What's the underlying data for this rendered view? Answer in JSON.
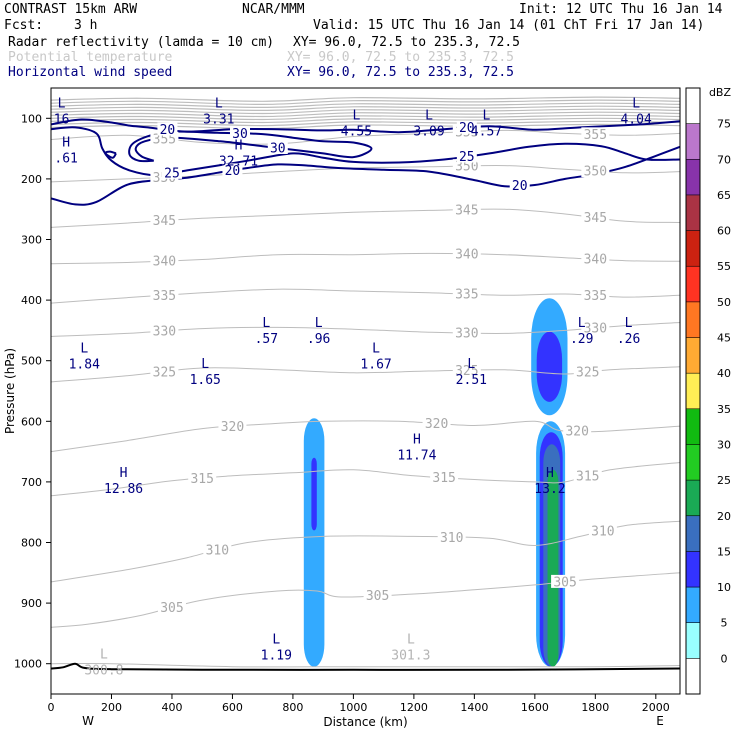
{
  "header": {
    "model": "CONTRAST 15km ARW",
    "center": "NCAR/MMM",
    "init": "Init: 12 UTC Thu 16 Jan 14",
    "fcst_label": "Fcst:",
    "fcst_value": "3 h",
    "valid": "Valid: 15 UTC Thu 16 Jan 14 (01 ChT Fri 17 Jan 14)"
  },
  "fields": [
    {
      "name": "Radar reflectivity (lamda = 10 cm)",
      "xy": "XY=  96.0, 72.5 to 235.3, 72.5",
      "color": "#000000"
    },
    {
      "name": "Potential temperature",
      "xy": "XY=  96.0, 72.5 to 235.3, 72.5",
      "color": "#c8c8c8"
    },
    {
      "name": "Horizontal wind speed",
      "xy": "XY=  96.0, 72.5 to 235.3, 72.5",
      "color": "#000080"
    }
  ],
  "chart_data": {
    "type": "cross-section contour",
    "xlabel": "Distance (km)",
    "ylabel": "Pressure (hPa)",
    "x_ticks": [
      0,
      200,
      400,
      600,
      800,
      1000,
      1200,
      1400,
      1600,
      1800,
      2000
    ],
    "x_range": [
      0,
      2080
    ],
    "y_ticks": [
      100,
      200,
      300,
      400,
      500,
      600,
      700,
      800,
      900,
      1000
    ],
    "y_range": [
      50,
      1050
    ],
    "x_end_labels": {
      "west": "W",
      "east": "E"
    },
    "colorbar": {
      "unit": "dBZ",
      "levels": [
        0,
        5,
        10,
        15,
        20,
        25,
        30,
        35,
        40,
        45,
        50,
        55,
        60,
        65,
        70,
        75
      ],
      "colors": [
        "#ffffff",
        "#99ffff",
        "#33aaff",
        "#3333ff",
        "#3a6fbf",
        "#1aaa55",
        "#22cc22",
        "#11bb11",
        "#ffee55",
        "#ffaa33",
        "#ff7722",
        "#ff3322",
        "#cc2211",
        "#aa3344",
        "#8833aa",
        "#bb77cc",
        "#ffffff"
      ]
    },
    "theta_contours": [
      {
        "label": "300.8",
        "points": [
          [
            0,
            1000
          ],
          [
            200,
            1000
          ],
          [
            600,
            1005
          ],
          [
            1000,
            1005
          ],
          [
            1400,
            1005
          ],
          [
            1800,
            1005
          ],
          [
            2080,
            1003
          ]
        ]
      },
      {
        "label": "305",
        "points": [
          [
            0,
            940
          ],
          [
            120,
            935
          ],
          [
            300,
            920
          ],
          [
            500,
            895
          ],
          [
            750,
            880
          ],
          [
            880,
            880
          ],
          [
            960,
            890
          ],
          [
            1200,
            885
          ],
          [
            1400,
            878
          ],
          [
            1600,
            870
          ],
          [
            1800,
            860
          ],
          [
            2080,
            850
          ]
        ]
      },
      {
        "label": "310",
        "points": [
          [
            0,
            865
          ],
          [
            250,
            845
          ],
          [
            450,
            825
          ],
          [
            650,
            800
          ],
          [
            900,
            790
          ],
          [
            1200,
            790
          ],
          [
            1450,
            793
          ],
          [
            1600,
            805
          ],
          [
            1750,
            790
          ],
          [
            1900,
            772
          ],
          [
            2080,
            765
          ]
        ]
      },
      {
        "label": "315",
        "points": [
          [
            0,
            723
          ],
          [
            200,
            712
          ],
          [
            400,
            698
          ],
          [
            600,
            690
          ],
          [
            800,
            685
          ],
          [
            1000,
            680
          ],
          [
            1200,
            690
          ],
          [
            1400,
            696
          ],
          [
            1600,
            700
          ],
          [
            1700,
            700
          ],
          [
            1850,
            680
          ],
          [
            2080,
            668
          ]
        ]
      },
      {
        "label": "320",
        "points": [
          [
            0,
            650
          ],
          [
            250,
            632
          ],
          [
            500,
            612
          ],
          [
            700,
            605
          ],
          [
            900,
            600
          ],
          [
            1150,
            600
          ],
          [
            1400,
            607
          ],
          [
            1600,
            600
          ],
          [
            1680,
            615
          ],
          [
            1800,
            617
          ],
          [
            2080,
            608
          ]
        ]
      },
      {
        "label": "325",
        "points": [
          [
            0,
            535
          ],
          [
            250,
            525
          ],
          [
            500,
            512
          ],
          [
            750,
            515
          ],
          [
            1000,
            520
          ],
          [
            1250,
            517
          ],
          [
            1500,
            515
          ],
          [
            1700,
            522
          ],
          [
            1850,
            515
          ],
          [
            2080,
            510
          ]
        ]
      },
      {
        "label": "330",
        "points": [
          [
            0,
            460
          ],
          [
            250,
            455
          ],
          [
            500,
            447
          ],
          [
            750,
            445
          ],
          [
            1000,
            448
          ],
          [
            1250,
            453
          ],
          [
            1500,
            455
          ],
          [
            1700,
            450
          ],
          [
            1900,
            442
          ],
          [
            2080,
            437
          ]
        ]
      },
      {
        "label": "335",
        "points": [
          [
            0,
            405
          ],
          [
            250,
            396
          ],
          [
            500,
            388
          ],
          [
            750,
            382
          ],
          [
            1000,
            385
          ],
          [
            1250,
            388
          ],
          [
            1500,
            392
          ],
          [
            1700,
            390
          ],
          [
            1900,
            395
          ],
          [
            2080,
            392
          ]
        ]
      },
      {
        "label": "340",
        "points": [
          [
            0,
            340
          ],
          [
            250,
            338
          ],
          [
            500,
            333
          ],
          [
            750,
            325
          ],
          [
            1000,
            325
          ],
          [
            1250,
            323
          ],
          [
            1500,
            325
          ],
          [
            1700,
            330
          ],
          [
            1900,
            335
          ],
          [
            2080,
            336
          ]
        ]
      },
      {
        "label": "345",
        "points": [
          [
            0,
            280
          ],
          [
            250,
            273
          ],
          [
            500,
            265
          ],
          [
            750,
            260
          ],
          [
            1000,
            255
          ],
          [
            1250,
            252
          ],
          [
            1500,
            250
          ],
          [
            1700,
            258
          ],
          [
            1900,
            270
          ],
          [
            2080,
            272
          ]
        ]
      },
      {
        "label": "350",
        "points": [
          [
            0,
            205
          ],
          [
            250,
            200
          ],
          [
            500,
            195
          ],
          [
            750,
            188
          ],
          [
            1000,
            182
          ],
          [
            1250,
            180
          ],
          [
            1500,
            178
          ],
          [
            1700,
            184
          ],
          [
            1900,
            190
          ],
          [
            2080,
            188
          ]
        ]
      },
      {
        "label": "355",
        "points": [
          [
            0,
            135
          ],
          [
            250,
            128
          ],
          [
            500,
            140
          ],
          [
            750,
            142
          ],
          [
            1000,
            130
          ],
          [
            1250,
            125
          ],
          [
            1500,
            120
          ],
          [
            1700,
            125
          ],
          [
            1900,
            128
          ],
          [
            2080,
            125
          ]
        ]
      }
    ],
    "wind_contours": [
      {
        "label": "20",
        "points": [
          [
            0,
            110
          ],
          [
            100,
            102
          ],
          [
            200,
            107
          ],
          [
            260,
            112
          ],
          [
            320,
            115
          ],
          [
            450,
            122
          ],
          [
            600,
            118
          ],
          [
            750,
            118
          ],
          [
            900,
            120
          ],
          [
            1000,
            119
          ],
          [
            1150,
            123
          ],
          [
            1300,
            118
          ],
          [
            1450,
            113
          ],
          [
            1600,
            119
          ],
          [
            1750,
            115
          ],
          [
            1950,
            110
          ],
          [
            2080,
            105
          ]
        ]
      },
      {
        "label": "30",
        "points": [
          [
            340,
            170
          ],
          [
            300,
            163
          ],
          [
            280,
            150
          ],
          [
            310,
            138
          ],
          [
            400,
            132
          ],
          [
            560,
            138
          ],
          [
            700,
            146
          ],
          [
            800,
            152
          ],
          [
            900,
            158
          ],
          [
            1000,
            164
          ],
          [
            1060,
            150
          ],
          [
            1000,
            140
          ],
          [
            900,
            138
          ],
          [
            800,
            132
          ],
          [
            700,
            126
          ],
          [
            550,
            124
          ],
          [
            400,
            122
          ],
          [
            330,
            128
          ],
          [
            270,
            142
          ],
          [
            260,
            160
          ],
          [
            290,
            170
          ],
          [
            340,
            170
          ]
        ]
      },
      {
        "label": "25",
        "points": [
          [
            0,
            118
          ],
          [
            80,
            115
          ],
          [
            150,
            125
          ],
          [
            170,
            150
          ],
          [
            200,
            170
          ],
          [
            260,
            186
          ],
          [
            350,
            194
          ],
          [
            450,
            186
          ],
          [
            550,
            178
          ],
          [
            650,
            170
          ],
          [
            800,
            158
          ],
          [
            900,
            165
          ],
          [
            1000,
            172
          ],
          [
            1150,
            173
          ],
          [
            1300,
            168
          ],
          [
            1450,
            158
          ],
          [
            1580,
            147
          ],
          [
            1700,
            142
          ],
          [
            1820,
            146
          ],
          [
            1900,
            158
          ],
          [
            1970,
            168
          ],
          [
            2080,
            168
          ]
        ]
      },
      {
        "label": "20",
        "points": [
          [
            0,
            232
          ],
          [
            80,
            242
          ],
          [
            150,
            238
          ],
          [
            250,
            210
          ],
          [
            350,
            202
          ],
          [
            450,
            198
          ],
          [
            550,
            190
          ],
          [
            650,
            182
          ],
          [
            750,
            176
          ],
          [
            850,
            178
          ],
          [
            950,
            182
          ],
          [
            1100,
            185
          ],
          [
            1250,
            188
          ],
          [
            1400,
            202
          ],
          [
            1500,
            212
          ],
          [
            1600,
            210
          ],
          [
            1700,
            200
          ],
          [
            1800,
            192
          ],
          [
            1900,
            180
          ],
          [
            2000,
            162
          ],
          [
            2080,
            147
          ]
        ]
      },
      {
        "label": "",
        "points": [
          [
            215,
            158
          ],
          [
            195,
            155
          ],
          [
            180,
            157
          ],
          [
            190,
            162
          ],
          [
            205,
            165
          ],
          [
            215,
            158
          ]
        ]
      }
    ],
    "reflectivity_cells": [
      {
        "level": 5,
        "center_x": 870,
        "half_width": 34,
        "top": 595,
        "bottom": 1005
      },
      {
        "level": 10,
        "center_x": 870,
        "half_width": 9,
        "top": 660,
        "bottom": 780
      },
      {
        "level": 5,
        "center_x": 1652,
        "half_width": 48,
        "top": 600,
        "bottom": 1005
      },
      {
        "level": 10,
        "center_x": 1654,
        "half_width": 38,
        "top": 618,
        "bottom": 1005
      },
      {
        "level": 15,
        "center_x": 1656,
        "half_width": 28,
        "top": 638,
        "bottom": 1005
      },
      {
        "level": 20,
        "center_x": 1660,
        "half_width": 18,
        "top": 680,
        "bottom": 1005
      },
      {
        "level": 5,
        "center_x": 1648,
        "half_width": 60,
        "top": 397,
        "bottom": 590
      },
      {
        "level": 10,
        "center_x": 1648,
        "half_width": 42,
        "top": 452,
        "bottom": 568
      }
    ],
    "terrain": [
      [
        0,
        1008
      ],
      [
        40,
        1006
      ],
      [
        80,
        1000
      ],
      [
        110,
        1007
      ],
      [
        200,
        1009
      ],
      [
        500,
        1010
      ],
      [
        1000,
        1010
      ],
      [
        1500,
        1010
      ],
      [
        2080,
        1008
      ]
    ],
    "extrema_labels": [
      {
        "type": "L",
        "value": "16",
        "x": 35,
        "y": 95,
        "color": "#000080"
      },
      {
        "type": "L",
        "value": "3.31",
        "x": 555,
        "y": 95,
        "color": "#000080"
      },
      {
        "type": "L",
        "value": "4.55",
        "x": 1010,
        "y": 115,
        "color": "#000080"
      },
      {
        "type": "L",
        "value": "3.09",
        "x": 1250,
        "y": 115,
        "color": "#000080"
      },
      {
        "type": "L",
        "value": "4.57",
        "x": 1440,
        "y": 115,
        "color": "#000080"
      },
      {
        "type": "L",
        "value": "4.04",
        "x": 1935,
        "y": 95,
        "color": "#000080"
      },
      {
        "type": "H",
        "value": ".61",
        "x": 50,
        "y": 160,
        "color": "#000080"
      },
      {
        "type": "H",
        "value": "32.71",
        "x": 620,
        "y": 165,
        "color": "#000080"
      },
      {
        "type": "L",
        "value": "1.84",
        "x": 110,
        "y": 500,
        "color": "#000080"
      },
      {
        "type": "L",
        "value": "1.65",
        "x": 510,
        "y": 525,
        "color": "#000080"
      },
      {
        "type": "L",
        "value": ".57",
        "x": 712,
        "y": 458,
        "color": "#000080"
      },
      {
        "type": "L",
        "value": ".96",
        "x": 885,
        "y": 458,
        "color": "#000080"
      },
      {
        "type": "L",
        "value": "1.67",
        "x": 1075,
        "y": 500,
        "color": "#000080"
      },
      {
        "type": "L",
        "value": "2.51",
        "x": 1390,
        "y": 525,
        "color": "#000080"
      },
      {
        "type": "L",
        "value": ".29",
        "x": 1755,
        "y": 458,
        "color": "#000080"
      },
      {
        "type": "L",
        "value": ".26",
        "x": 1910,
        "y": 458,
        "color": "#000080"
      },
      {
        "type": "H",
        "value": "11.74",
        "x": 1210,
        "y": 650,
        "color": "#000080"
      },
      {
        "type": "H",
        "value": "12.86",
        "x": 240,
        "y": 705,
        "color": "#000080"
      },
      {
        "type": "H",
        "value": "13.2",
        "x": 1650,
        "y": 705,
        "color": "#000080"
      },
      {
        "type": "L",
        "value": "1.19",
        "x": 745,
        "y": 980,
        "color": "#000080"
      },
      {
        "type": "L",
        "value": "301.3",
        "x": 1190,
        "y": 980,
        "color": "#b4b4b4"
      },
      {
        "type": "L",
        "value": "300.8",
        "x": 175,
        "y": 1005,
        "color": "#b4b4b4"
      }
    ]
  }
}
